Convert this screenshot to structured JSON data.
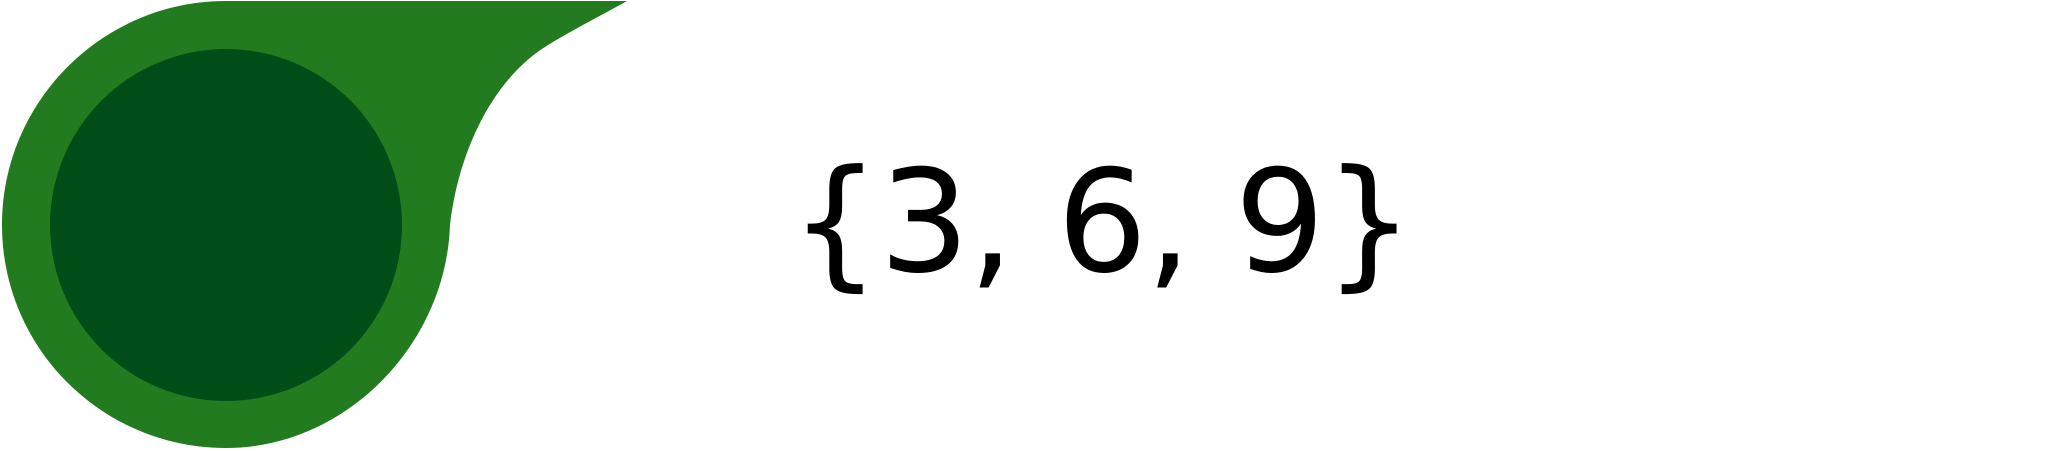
{
  "colors": {
    "badge_outer": "#237b20",
    "badge_inner": "#004d17",
    "text": "#000000",
    "background": "#ffffff"
  },
  "expression": {
    "text": "{3, 6, 9}"
  }
}
